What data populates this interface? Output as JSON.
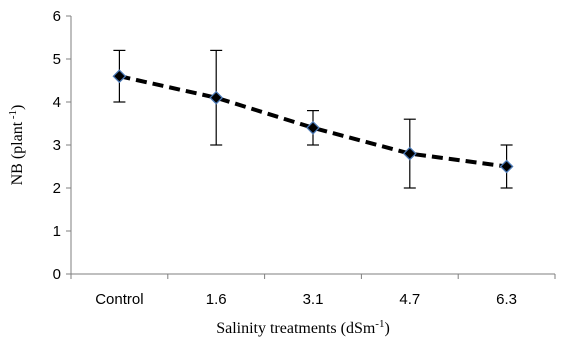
{
  "chart_data": {
    "type": "line",
    "categories": [
      "Control",
      "1.6",
      "3.1",
      "4.7",
      "6.3"
    ],
    "series": [
      {
        "values": [
          4.6,
          4.1,
          3.4,
          2.8,
          2.5
        ],
        "error_low": [
          4.0,
          3.0,
          3.0,
          2.0,
          2.0
        ],
        "error_high": [
          5.2,
          5.2,
          3.8,
          3.6,
          3.0
        ],
        "line_style": "dashed",
        "line_color": "#000000",
        "marker": "diamond",
        "marker_fill": "#000000",
        "marker_edge": "#4a78b5"
      }
    ],
    "ylim": [
      0,
      6
    ],
    "yticks": [
      "0",
      "1",
      "2",
      "3",
      "4",
      "5",
      "6"
    ],
    "ylabel": {
      "main": "NB  (plant",
      "sup": " -1",
      "end": ")"
    },
    "xlabel": {
      "main": "Salinity treatments  (dSm",
      "sup": "-1",
      "end": ")"
    },
    "grid": false,
    "legend": "none"
  }
}
